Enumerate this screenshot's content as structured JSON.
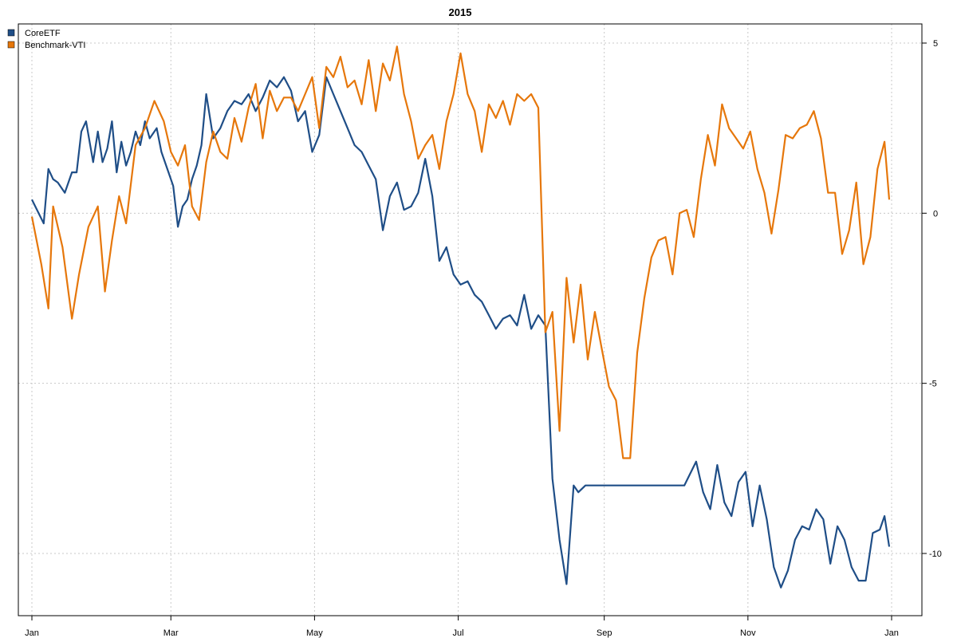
{
  "chart_data": {
    "type": "line",
    "title": "2015",
    "xlabel": "",
    "ylabel": "",
    "x_ticks": [
      "Jan",
      "Mar",
      "May",
      "Jul",
      "Sep",
      "Nov",
      "Jan"
    ],
    "y_ticks": [
      "5",
      "0",
      "-5",
      "-10"
    ],
    "y_tick_values": [
      5,
      0,
      -5,
      -10
    ],
    "ylim": [
      -11.5,
      5.75
    ],
    "grid": true,
    "legend_position": "top-left",
    "colors": {
      "CoreETF": "#1f4e87",
      "Benchmark-VTI": "#e6770b"
    },
    "series": [
      {
        "name": "CoreETF",
        "x": [
          "2015-01-01",
          "2015-01-06",
          "2015-01-08",
          "2015-01-10",
          "2015-01-12",
          "2015-01-15",
          "2015-01-18",
          "2015-01-20",
          "2015-01-22",
          "2015-01-24",
          "2015-01-27",
          "2015-01-29",
          "2015-01-31",
          "2015-02-02",
          "2015-02-04",
          "2015-02-06",
          "2015-02-08",
          "2015-02-10",
          "2015-02-12",
          "2015-02-14",
          "2015-02-16",
          "2015-02-18",
          "2015-02-20",
          "2015-02-23",
          "2015-02-25",
          "2015-02-28",
          "2015-03-02",
          "2015-03-04",
          "2015-03-06",
          "2015-03-08",
          "2015-03-10",
          "2015-03-12",
          "2015-03-14",
          "2015-03-16",
          "2015-03-19",
          "2015-03-22",
          "2015-03-25",
          "2015-03-28",
          "2015-03-31",
          "2015-04-03",
          "2015-04-06",
          "2015-04-09",
          "2015-04-12",
          "2015-04-15",
          "2015-04-18",
          "2015-04-21",
          "2015-04-24",
          "2015-04-27",
          "2015-04-30",
          "2015-05-03",
          "2015-05-06",
          "2015-05-09",
          "2015-05-12",
          "2015-05-15",
          "2015-05-18",
          "2015-05-21",
          "2015-05-24",
          "2015-05-27",
          "2015-05-30",
          "2015-06-02",
          "2015-06-05",
          "2015-06-08",
          "2015-06-11",
          "2015-06-14",
          "2015-06-17",
          "2015-06-20",
          "2015-06-23",
          "2015-06-26",
          "2015-06-29",
          "2015-07-02",
          "2015-07-05",
          "2015-07-08",
          "2015-07-11",
          "2015-07-14",
          "2015-07-17",
          "2015-07-20",
          "2015-07-23",
          "2015-07-26",
          "2015-07-29",
          "2015-08-01",
          "2015-08-04",
          "2015-08-07",
          "2015-08-10",
          "2015-08-13",
          "2015-08-16",
          "2015-08-19",
          "2015-08-21",
          "2015-08-24",
          "2015-08-26",
          "2015-08-28",
          "2015-08-31",
          "2015-09-03",
          "2015-09-06",
          "2015-09-10",
          "2015-09-15",
          "2015-09-20",
          "2015-09-25",
          "2015-09-30",
          "2015-10-05",
          "2015-10-10",
          "2015-10-13",
          "2015-10-16",
          "2015-10-19",
          "2015-10-22",
          "2015-10-25",
          "2015-10-28",
          "2015-10-31",
          "2015-11-03",
          "2015-11-06",
          "2015-11-09",
          "2015-11-12",
          "2015-11-15",
          "2015-11-18",
          "2015-11-21",
          "2015-11-24",
          "2015-11-27",
          "2015-11-30",
          "2015-12-03",
          "2015-12-06",
          "2015-12-09",
          "2015-12-12",
          "2015-12-15",
          "2015-12-18",
          "2015-12-21",
          "2015-12-24",
          "2015-12-27",
          "2015-12-29",
          "2015-12-31"
        ],
        "values": [
          0.4,
          -0.3,
          1.3,
          1.0,
          0.9,
          0.6,
          1.2,
          1.2,
          2.4,
          2.7,
          1.5,
          2.4,
          1.5,
          1.9,
          2.7,
          1.2,
          2.1,
          1.4,
          1.8,
          2.4,
          2.0,
          2.7,
          2.2,
          2.5,
          1.8,
          1.2,
          0.8,
          -0.4,
          0.2,
          0.4,
          1.0,
          1.4,
          2.0,
          3.5,
          2.2,
          2.5,
          3.0,
          3.3,
          3.2,
          3.5,
          3.0,
          3.4,
          3.9,
          3.7,
          4.0,
          3.6,
          2.7,
          3.0,
          1.8,
          2.3,
          4.0,
          3.5,
          3.0,
          2.5,
          2.0,
          1.8,
          1.4,
          1.0,
          -0.5,
          0.5,
          0.9,
          0.1,
          0.2,
          0.6,
          1.6,
          0.5,
          -1.4,
          -1.0,
          -1.8,
          -2.1,
          -2.0,
          -2.4,
          -2.6,
          -3.0,
          -3.4,
          -3.1,
          -3.0,
          -3.3,
          -2.4,
          -3.4,
          -3.0,
          -3.3,
          -7.8,
          -9.6,
          -10.9,
          -8.0,
          -8.2,
          -8.0,
          -8.0,
          -8.0,
          -8.0,
          -8.0,
          -8.0,
          -8.0,
          -8.0,
          -8.0,
          -8.0,
          -8.0,
          -8.0,
          -7.3,
          -8.2,
          -8.7,
          -7.4,
          -8.5,
          -8.9,
          -7.9,
          -7.6,
          -9.2,
          -8.0,
          -9.0,
          -10.4,
          -11.0,
          -10.5,
          -9.6,
          -9.2,
          -9.3,
          -8.7,
          -9.0,
          -10.3,
          -9.2,
          -9.6,
          -10.4,
          -10.8,
          -10.8,
          -9.4,
          -9.3,
          -8.9,
          -9.8
        ]
      },
      {
        "name": "Benchmark-VTI",
        "x": [
          "2015-01-01",
          "2015-01-05",
          "2015-01-08",
          "2015-01-10",
          "2015-01-14",
          "2015-01-18",
          "2015-01-21",
          "2015-01-25",
          "2015-01-29",
          "2015-02-01",
          "2015-02-04",
          "2015-02-07",
          "2015-02-10",
          "2015-02-14",
          "2015-02-18",
          "2015-02-22",
          "2015-02-26",
          "2015-03-01",
          "2015-03-04",
          "2015-03-07",
          "2015-03-10",
          "2015-03-13",
          "2015-03-16",
          "2015-03-19",
          "2015-03-22",
          "2015-03-25",
          "2015-03-28",
          "2015-03-31",
          "2015-04-03",
          "2015-04-06",
          "2015-04-09",
          "2015-04-12",
          "2015-04-15",
          "2015-04-18",
          "2015-04-21",
          "2015-04-24",
          "2015-04-27",
          "2015-04-30",
          "2015-05-03",
          "2015-05-06",
          "2015-05-09",
          "2015-05-12",
          "2015-05-15",
          "2015-05-18",
          "2015-05-21",
          "2015-05-24",
          "2015-05-27",
          "2015-05-30",
          "2015-06-02",
          "2015-06-05",
          "2015-06-08",
          "2015-06-11",
          "2015-06-14",
          "2015-06-17",
          "2015-06-20",
          "2015-06-23",
          "2015-06-26",
          "2015-06-29",
          "2015-07-02",
          "2015-07-05",
          "2015-07-08",
          "2015-07-11",
          "2015-07-14",
          "2015-07-17",
          "2015-07-20",
          "2015-07-23",
          "2015-07-26",
          "2015-07-29",
          "2015-08-01",
          "2015-08-04",
          "2015-08-07",
          "2015-08-10",
          "2015-08-13",
          "2015-08-16",
          "2015-08-19",
          "2015-08-22",
          "2015-08-25",
          "2015-08-28",
          "2015-08-31",
          "2015-09-03",
          "2015-09-06",
          "2015-09-09",
          "2015-09-12",
          "2015-09-15",
          "2015-09-18",
          "2015-09-21",
          "2015-09-24",
          "2015-09-27",
          "2015-09-30",
          "2015-10-03",
          "2015-10-06",
          "2015-10-09",
          "2015-10-12",
          "2015-10-15",
          "2015-10-18",
          "2015-10-21",
          "2015-10-24",
          "2015-10-27",
          "2015-10-30",
          "2015-11-02",
          "2015-11-05",
          "2015-11-08",
          "2015-11-11",
          "2015-11-14",
          "2015-11-17",
          "2015-11-20",
          "2015-11-23",
          "2015-11-26",
          "2015-11-29",
          "2015-12-02",
          "2015-12-05",
          "2015-12-08",
          "2015-12-11",
          "2015-12-14",
          "2015-12-17",
          "2015-12-20",
          "2015-12-23",
          "2015-12-26",
          "2015-12-29",
          "2015-12-31"
        ],
        "values": [
          -0.1,
          -1.5,
          -2.8,
          0.2,
          -1.0,
          -3.1,
          -1.8,
          -0.4,
          0.2,
          -2.3,
          -0.8,
          0.5,
          -0.3,
          2.0,
          2.5,
          3.3,
          2.7,
          1.8,
          1.4,
          2.0,
          0.2,
          -0.2,
          1.5,
          2.4,
          1.8,
          1.6,
          2.8,
          2.1,
          3.1,
          3.8,
          2.2,
          3.6,
          3.0,
          3.4,
          3.4,
          3.0,
          3.5,
          4.0,
          2.5,
          4.3,
          4.0,
          4.6,
          3.7,
          3.9,
          3.2,
          4.5,
          3.0,
          4.4,
          3.9,
          4.9,
          3.5,
          2.7,
          1.6,
          2.0,
          2.3,
          1.3,
          2.7,
          3.5,
          4.7,
          3.5,
          3.0,
          1.8,
          3.2,
          2.8,
          3.3,
          2.6,
          3.5,
          3.3,
          3.5,
          3.1,
          -3.5,
          -2.9,
          -6.4,
          -1.9,
          -3.8,
          -2.1,
          -4.3,
          -2.9,
          -4.0,
          -5.1,
          -5.5,
          -7.2,
          -7.2,
          -4.1,
          -2.5,
          -1.3,
          -0.8,
          -0.7,
          -1.8,
          0.0,
          0.1,
          -0.7,
          1.0,
          2.3,
          1.4,
          3.2,
          2.5,
          2.2,
          1.9,
          2.4,
          1.3,
          0.6,
          -0.6,
          0.7,
          2.3,
          2.2,
          2.5,
          2.6,
          3.0,
          2.2,
          0.6,
          0.6,
          -1.2,
          -0.5,
          0.9,
          -1.5,
          -0.7,
          1.3,
          2.1,
          0.4
        ]
      }
    ]
  }
}
